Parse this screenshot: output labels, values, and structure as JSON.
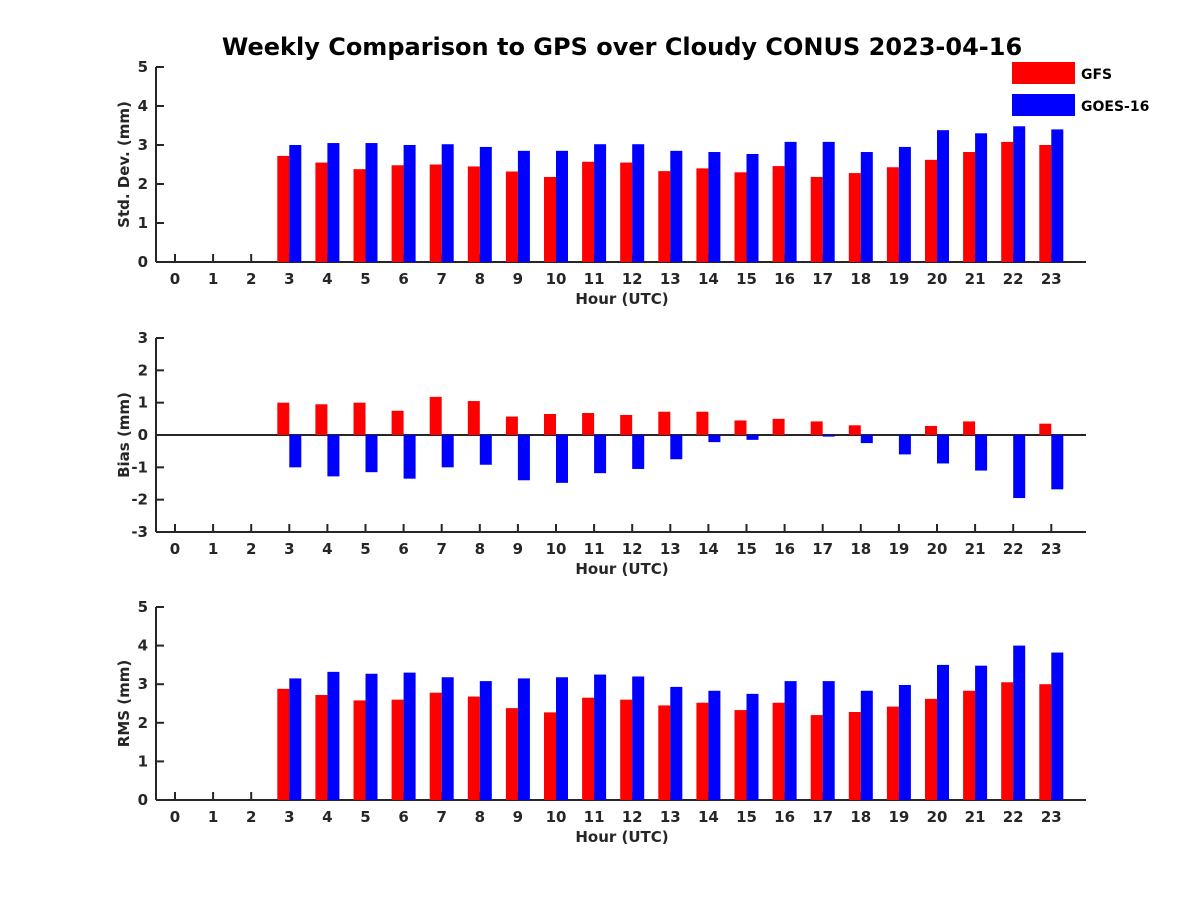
{
  "chart_data": {
    "type": "bar",
    "title": "Weekly Comparison to GPS over Cloudy CONUS 2023-04-16",
    "legend": {
      "placement": "top-right",
      "entries": [
        "GFS",
        "GOES-16"
      ]
    },
    "colors": {
      "GFS": "#ff0000",
      "GOES-16": "#0000ff"
    },
    "categories": [
      0,
      1,
      2,
      3,
      4,
      5,
      6,
      7,
      8,
      9,
      10,
      11,
      12,
      13,
      14,
      15,
      16,
      17,
      18,
      19,
      20,
      21,
      22,
      23
    ],
    "panels": [
      {
        "ylabel": "Std. Dev. (mm)",
        "xlabel": "Hour (UTC)",
        "ylim": [
          0,
          5
        ],
        "yticks": [
          0,
          1,
          2,
          3,
          4,
          5
        ],
        "series": [
          {
            "name": "GFS",
            "values": [
              null,
              null,
              null,
              2.72,
              2.55,
              2.38,
              2.48,
              2.5,
              2.45,
              2.32,
              2.18,
              2.57,
              2.55,
              2.33,
              2.4,
              2.3,
              2.46,
              2.18,
              2.28,
              2.43,
              2.62,
              2.82,
              3.08,
              3.0
            ]
          },
          {
            "name": "GOES-16",
            "values": [
              null,
              null,
              null,
              3.0,
              3.05,
              3.05,
              3.0,
              3.02,
              2.95,
              2.85,
              2.85,
              3.02,
              3.02,
              2.85,
              2.82,
              2.77,
              3.08,
              3.08,
              2.82,
              2.95,
              3.38,
              3.3,
              3.48,
              3.4
            ]
          }
        ]
      },
      {
        "ylabel": "Bias (mm)",
        "xlabel": "Hour (UTC)",
        "ylim": [
          -3,
          3
        ],
        "yticks": [
          -3,
          -2,
          -1,
          0,
          1,
          2,
          3
        ],
        "series": [
          {
            "name": "GFS",
            "values": [
              null,
              null,
              null,
              1.0,
              0.95,
              1.0,
              0.75,
              1.18,
              1.05,
              0.57,
              0.65,
              0.68,
              0.62,
              0.72,
              0.72,
              0.45,
              0.5,
              0.42,
              0.3,
              0.0,
              0.28,
              0.42,
              0.0,
              0.35
            ]
          },
          {
            "name": "GOES-16",
            "values": [
              null,
              null,
              null,
              -1.0,
              -1.28,
              -1.15,
              -1.35,
              -1.0,
              -0.92,
              -1.4,
              -1.48,
              -1.18,
              -1.05,
              -0.75,
              -0.22,
              -0.15,
              0.0,
              -0.05,
              -0.25,
              -0.6,
              -0.88,
              -1.1,
              -1.95,
              -1.68
            ]
          }
        ]
      },
      {
        "ylabel": "RMS (mm)",
        "xlabel": "Hour (UTC)",
        "ylim": [
          0,
          5
        ],
        "yticks": [
          0,
          1,
          2,
          3,
          4,
          5
        ],
        "series": [
          {
            "name": "GFS",
            "values": [
              null,
              null,
              null,
              2.88,
              2.72,
              2.58,
              2.6,
              2.78,
              2.68,
              2.38,
              2.27,
              2.65,
              2.6,
              2.45,
              2.52,
              2.33,
              2.52,
              2.2,
              2.28,
              2.42,
              2.62,
              2.83,
              3.05,
              3.0
            ]
          },
          {
            "name": "GOES-16",
            "values": [
              null,
              null,
              null,
              3.15,
              3.32,
              3.27,
              3.3,
              3.18,
              3.08,
              3.15,
              3.18,
              3.25,
              3.2,
              2.93,
              2.83,
              2.75,
              3.08,
              3.08,
              2.83,
              2.98,
              3.5,
              3.48,
              4.0,
              3.82
            ]
          }
        ]
      }
    ]
  }
}
